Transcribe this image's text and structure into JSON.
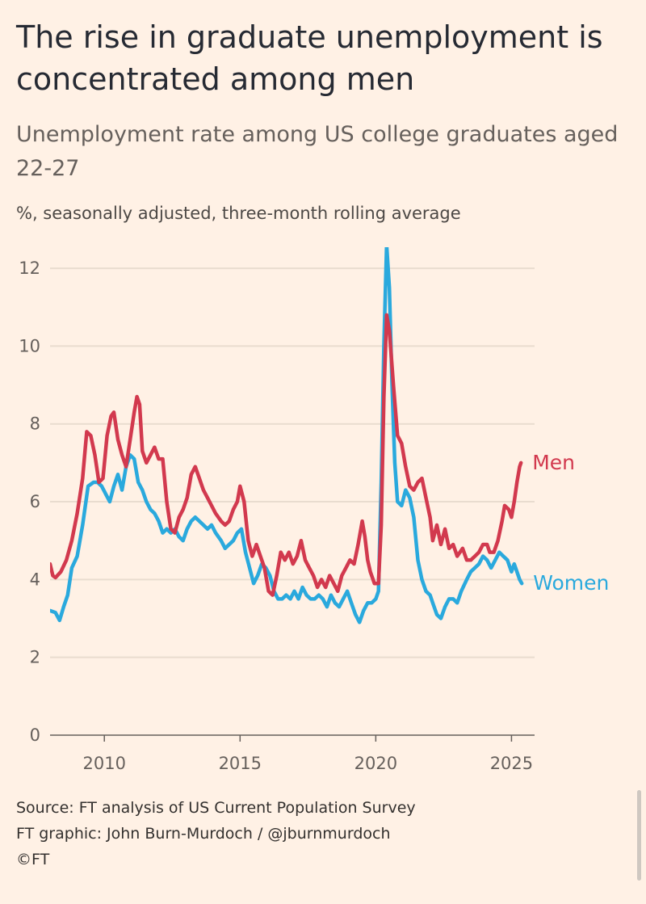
{
  "title": "The rise in graduate unemployment is concentrated among men",
  "subtitle": "Unemployment rate among US college graduates aged 22-27",
  "note": "%, seasonally adjusted, three-month rolling average",
  "footer": {
    "source": "Source: FT analysis of US Current Population Survey",
    "credit": "FT graphic: John Burn-Murdoch / @jburnmurdoch",
    "copyright": "©FT"
  },
  "colors": {
    "men": "#D2394E",
    "women": "#2AA9DD",
    "grid": "#E9DCCF",
    "axis": "#66605C"
  },
  "chart_data": {
    "type": "line",
    "title": "The rise in graduate unemployment is concentrated among men",
    "subtitle": "Unemployment rate among US college graduates aged 22-27",
    "ylabel": "%, seasonally adjusted, three-month rolling average",
    "xlim": [
      2008.0,
      2025.85
    ],
    "ylim": [
      0,
      12.5
    ],
    "yticks": [
      "0",
      "2",
      "4",
      "6",
      "8",
      "10",
      "12"
    ],
    "xticks": [
      "2010",
      "2015",
      "2020",
      "2025"
    ],
    "grid": true,
    "legend": "direct labels at line ends",
    "series": [
      {
        "name": "Men",
        "color": "#D2394E",
        "points": [
          [
            2008.0,
            4.4
          ],
          [
            2008.1,
            4.1
          ],
          [
            2008.2,
            4.05
          ],
          [
            2008.4,
            4.2
          ],
          [
            2008.6,
            4.5
          ],
          [
            2008.8,
            5.0
          ],
          [
            2009.0,
            5.7
          ],
          [
            2009.2,
            6.6
          ],
          [
            2009.35,
            7.8
          ],
          [
            2009.5,
            7.7
          ],
          [
            2009.65,
            7.2
          ],
          [
            2009.8,
            6.5
          ],
          [
            2009.95,
            6.6
          ],
          [
            2010.1,
            7.7
          ],
          [
            2010.25,
            8.2
          ],
          [
            2010.35,
            8.3
          ],
          [
            2010.5,
            7.6
          ],
          [
            2010.65,
            7.2
          ],
          [
            2010.8,
            6.9
          ],
          [
            2010.95,
            7.6
          ],
          [
            2011.1,
            8.3
          ],
          [
            2011.2,
            8.7
          ],
          [
            2011.3,
            8.5
          ],
          [
            2011.4,
            7.3
          ],
          [
            2011.55,
            7.0
          ],
          [
            2011.7,
            7.2
          ],
          [
            2011.85,
            7.4
          ],
          [
            2012.0,
            7.1
          ],
          [
            2012.15,
            7.1
          ],
          [
            2012.3,
            6.0
          ],
          [
            2012.45,
            5.3
          ],
          [
            2012.6,
            5.2
          ],
          [
            2012.75,
            5.6
          ],
          [
            2012.9,
            5.8
          ],
          [
            2013.05,
            6.1
          ],
          [
            2013.2,
            6.7
          ],
          [
            2013.35,
            6.9
          ],
          [
            2013.5,
            6.6
          ],
          [
            2013.65,
            6.3
          ],
          [
            2013.8,
            6.1
          ],
          [
            2013.95,
            5.9
          ],
          [
            2014.1,
            5.7
          ],
          [
            2014.3,
            5.5
          ],
          [
            2014.45,
            5.4
          ],
          [
            2014.6,
            5.5
          ],
          [
            2014.75,
            5.8
          ],
          [
            2014.9,
            6.0
          ],
          [
            2015.0,
            6.4
          ],
          [
            2015.15,
            6.0
          ],
          [
            2015.3,
            5.0
          ],
          [
            2015.45,
            4.6
          ],
          [
            2015.6,
            4.9
          ],
          [
            2015.75,
            4.6
          ],
          [
            2015.9,
            4.3
          ],
          [
            2016.05,
            3.7
          ],
          [
            2016.2,
            3.6
          ],
          [
            2016.35,
            4.1
          ],
          [
            2016.5,
            4.7
          ],
          [
            2016.65,
            4.5
          ],
          [
            2016.8,
            4.7
          ],
          [
            2016.95,
            4.4
          ],
          [
            2017.1,
            4.6
          ],
          [
            2017.25,
            5.0
          ],
          [
            2017.4,
            4.5
          ],
          [
            2017.55,
            4.3
          ],
          [
            2017.7,
            4.1
          ],
          [
            2017.85,
            3.8
          ],
          [
            2018.0,
            4.0
          ],
          [
            2018.15,
            3.8
          ],
          [
            2018.3,
            4.1
          ],
          [
            2018.45,
            3.9
          ],
          [
            2018.6,
            3.7
          ],
          [
            2018.75,
            4.1
          ],
          [
            2018.9,
            4.3
          ],
          [
            2019.05,
            4.5
          ],
          [
            2019.2,
            4.4
          ],
          [
            2019.35,
            4.9
          ],
          [
            2019.5,
            5.5
          ],
          [
            2019.6,
            5.1
          ],
          [
            2019.7,
            4.5
          ],
          [
            2019.8,
            4.2
          ],
          [
            2019.95,
            3.9
          ],
          [
            2020.1,
            3.9
          ],
          [
            2020.2,
            5.4
          ],
          [
            2020.3,
            8.7
          ],
          [
            2020.4,
            10.8
          ],
          [
            2020.5,
            10.4
          ],
          [
            2020.65,
            9.0
          ],
          [
            2020.8,
            7.7
          ],
          [
            2020.95,
            7.5
          ],
          [
            2021.1,
            6.9
          ],
          [
            2021.25,
            6.4
          ],
          [
            2021.4,
            6.3
          ],
          [
            2021.55,
            6.5
          ],
          [
            2021.7,
            6.6
          ],
          [
            2021.85,
            6.1
          ],
          [
            2022.0,
            5.6
          ],
          [
            2022.1,
            5.0
          ],
          [
            2022.25,
            5.4
          ],
          [
            2022.4,
            4.9
          ],
          [
            2022.55,
            5.3
          ],
          [
            2022.7,
            4.8
          ],
          [
            2022.85,
            4.9
          ],
          [
            2023.0,
            4.6
          ],
          [
            2023.2,
            4.8
          ],
          [
            2023.35,
            4.5
          ],
          [
            2023.5,
            4.5
          ],
          [
            2023.65,
            4.6
          ],
          [
            2023.8,
            4.7
          ],
          [
            2023.95,
            4.9
          ],
          [
            2024.1,
            4.9
          ],
          [
            2024.2,
            4.7
          ],
          [
            2024.35,
            4.7
          ],
          [
            2024.5,
            5.0
          ],
          [
            2024.65,
            5.5
          ],
          [
            2024.75,
            5.9
          ],
          [
            2024.9,
            5.8
          ],
          [
            2025.0,
            5.6
          ],
          [
            2025.1,
            6.0
          ],
          [
            2025.2,
            6.5
          ],
          [
            2025.3,
            6.9
          ],
          [
            2025.35,
            7.0
          ]
        ]
      },
      {
        "name": "Women",
        "color": "#2AA9DD",
        "points": [
          [
            2008.0,
            3.2
          ],
          [
            2008.2,
            3.15
          ],
          [
            2008.35,
            2.95
          ],
          [
            2008.5,
            3.3
          ],
          [
            2008.65,
            3.6
          ],
          [
            2008.8,
            4.3
          ],
          [
            2009.0,
            4.6
          ],
          [
            2009.2,
            5.4
          ],
          [
            2009.4,
            6.4
          ],
          [
            2009.6,
            6.5
          ],
          [
            2009.75,
            6.5
          ],
          [
            2009.9,
            6.4
          ],
          [
            2010.05,
            6.2
          ],
          [
            2010.2,
            6.0
          ],
          [
            2010.35,
            6.4
          ],
          [
            2010.5,
            6.7
          ],
          [
            2010.65,
            6.3
          ],
          [
            2010.8,
            6.9
          ],
          [
            2010.95,
            7.2
          ],
          [
            2011.1,
            7.1
          ],
          [
            2011.25,
            6.5
          ],
          [
            2011.4,
            6.3
          ],
          [
            2011.55,
            6.0
          ],
          [
            2011.7,
            5.8
          ],
          [
            2011.85,
            5.7
          ],
          [
            2012.0,
            5.5
          ],
          [
            2012.15,
            5.2
          ],
          [
            2012.3,
            5.3
          ],
          [
            2012.45,
            5.2
          ],
          [
            2012.6,
            5.3
          ],
          [
            2012.75,
            5.1
          ],
          [
            2012.9,
            5.0
          ],
          [
            2013.05,
            5.3
          ],
          [
            2013.2,
            5.5
          ],
          [
            2013.35,
            5.6
          ],
          [
            2013.5,
            5.5
          ],
          [
            2013.65,
            5.4
          ],
          [
            2013.8,
            5.3
          ],
          [
            2013.95,
            5.4
          ],
          [
            2014.1,
            5.2
          ],
          [
            2014.3,
            5.0
          ],
          [
            2014.45,
            4.8
          ],
          [
            2014.6,
            4.9
          ],
          [
            2014.75,
            5.0
          ],
          [
            2014.9,
            5.2
          ],
          [
            2015.05,
            5.3
          ],
          [
            2015.2,
            4.7
          ],
          [
            2015.35,
            4.3
          ],
          [
            2015.5,
            3.9
          ],
          [
            2015.65,
            4.1
          ],
          [
            2015.8,
            4.4
          ],
          [
            2015.95,
            4.3
          ],
          [
            2016.1,
            4.1
          ],
          [
            2016.25,
            3.7
          ],
          [
            2016.4,
            3.5
          ],
          [
            2016.55,
            3.5
          ],
          [
            2016.7,
            3.6
          ],
          [
            2016.85,
            3.5
          ],
          [
            2017.0,
            3.7
          ],
          [
            2017.15,
            3.5
          ],
          [
            2017.3,
            3.8
          ],
          [
            2017.45,
            3.6
          ],
          [
            2017.6,
            3.5
          ],
          [
            2017.75,
            3.5
          ],
          [
            2017.9,
            3.6
          ],
          [
            2018.05,
            3.5
          ],
          [
            2018.2,
            3.3
          ],
          [
            2018.35,
            3.6
          ],
          [
            2018.5,
            3.4
          ],
          [
            2018.65,
            3.3
          ],
          [
            2018.8,
            3.5
          ],
          [
            2018.95,
            3.7
          ],
          [
            2019.1,
            3.4
          ],
          [
            2019.25,
            3.1
          ],
          [
            2019.4,
            2.9
          ],
          [
            2019.55,
            3.2
          ],
          [
            2019.7,
            3.4
          ],
          [
            2019.85,
            3.4
          ],
          [
            2020.0,
            3.5
          ],
          [
            2020.1,
            3.7
          ],
          [
            2020.2,
            6.5
          ],
          [
            2020.3,
            10.0
          ],
          [
            2020.4,
            12.6
          ],
          [
            2020.5,
            11.5
          ],
          [
            2020.6,
            9.0
          ],
          [
            2020.7,
            7.0
          ],
          [
            2020.8,
            6.0
          ],
          [
            2020.95,
            5.9
          ],
          [
            2021.1,
            6.3
          ],
          [
            2021.25,
            6.1
          ],
          [
            2021.4,
            5.6
          ],
          [
            2021.55,
            4.5
          ],
          [
            2021.7,
            4.0
          ],
          [
            2021.85,
            3.7
          ],
          [
            2022.0,
            3.6
          ],
          [
            2022.1,
            3.4
          ],
          [
            2022.25,
            3.1
          ],
          [
            2022.4,
            3.0
          ],
          [
            2022.55,
            3.3
          ],
          [
            2022.7,
            3.5
          ],
          [
            2022.85,
            3.5
          ],
          [
            2023.0,
            3.4
          ],
          [
            2023.15,
            3.7
          ],
          [
            2023.35,
            4.0
          ],
          [
            2023.5,
            4.2
          ],
          [
            2023.65,
            4.3
          ],
          [
            2023.8,
            4.4
          ],
          [
            2023.95,
            4.6
          ],
          [
            2024.1,
            4.5
          ],
          [
            2024.25,
            4.3
          ],
          [
            2024.4,
            4.5
          ],
          [
            2024.55,
            4.7
          ],
          [
            2024.7,
            4.6
          ],
          [
            2024.85,
            4.5
          ],
          [
            2025.0,
            4.2
          ],
          [
            2025.1,
            4.4
          ],
          [
            2025.2,
            4.2
          ],
          [
            2025.3,
            4.0
          ],
          [
            2025.38,
            3.9
          ]
        ]
      }
    ]
  }
}
